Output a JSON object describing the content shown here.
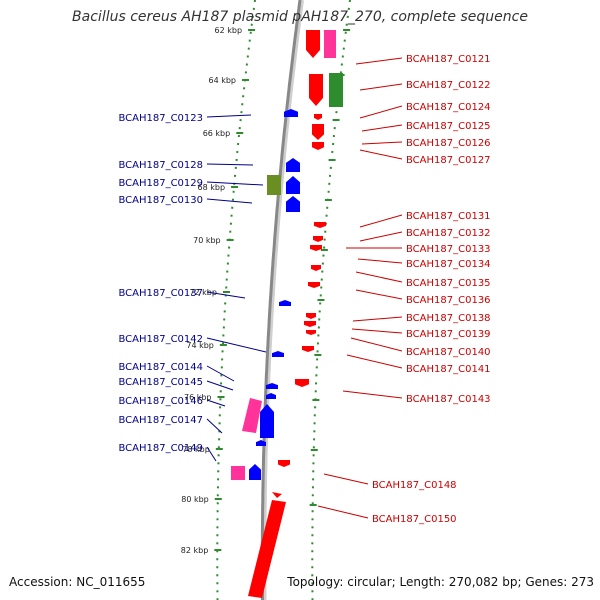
{
  "title": "Bacillus cereus AH187 plasmid pAH187_270, complete sequence",
  "accession": "Accession: NC_011655",
  "topology": "Topology: circular; Length: 270,082 bp; Genes: 273",
  "colors": {
    "forward": "#ff0000",
    "reverse": "#0000ff",
    "pink": "#ff3399",
    "green": "#2e8b2e",
    "olive": "#6b8e23",
    "backbone": "#888888",
    "tick": "#2e8b2e",
    "left_label": "#00008b",
    "right_label": "#cc0000"
  },
  "ticks": [
    "62 kbp",
    "64 kbp",
    "66 kbp",
    "68 kbp",
    "70 kbp",
    "72 kbp",
    "74 kbp",
    "76 kbp",
    "78 kbp",
    "80 kbp",
    "82 kbp"
  ],
  "left_labels": [
    "BCAH187_C0123",
    "BCAH187_C0128",
    "BCAH187_C0129",
    "BCAH187_C0130",
    "BCAH187_C0137",
    "BCAH187_C0142",
    "BCAH187_C0144",
    "BCAH187_C0145",
    "BCAH187_C0146",
    "BCAH187_C0147",
    "BCAH187_C0149"
  ],
  "right_labels": [
    "BCAH187_C0121",
    "BCAH187_C0122",
    "BCAH187_C0124",
    "BCAH187_C0125",
    "BCAH187_C0126",
    "BCAH187_C0127",
    "BCAH187_C0131",
    "BCAH187_C0132",
    "BCAH187_C0133",
    "BCAH187_C0134",
    "BCAH187_C0135",
    "BCAH187_C0136",
    "BCAH187_C0138",
    "BCAH187_C0139",
    "BCAH187_C0140",
    "BCAH187_C0141",
    "BCAH187_C0143",
    "BCAH187_C0148",
    "BCAH187_C0150"
  ]
}
